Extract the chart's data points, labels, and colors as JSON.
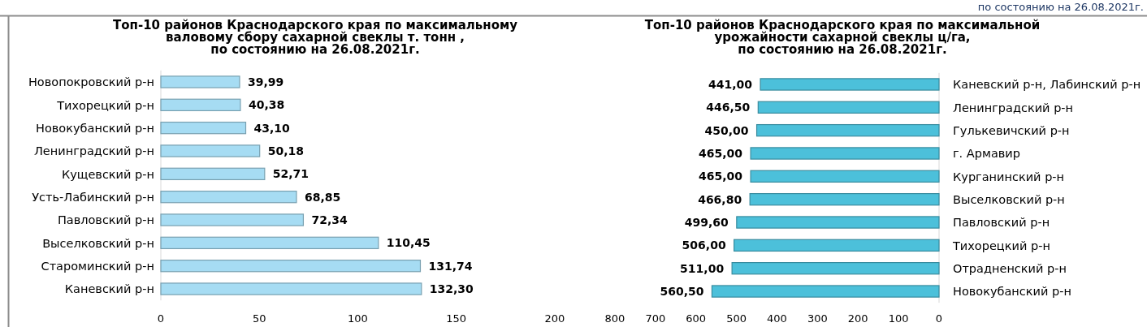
{
  "chart_data": [
    {
      "type": "bar",
      "orientation": "horizontal",
      "title": "Топ-10 районов Краснодарского края по максимальному\nваловому сбору сахарной свеклы т. тонн ,\nпо состоянию на 26.08.2021г.",
      "categories": [
        "Новопокровский р-н",
        "Тихорецкий р-н",
        "Новокубанский р-н",
        "Ленинградский р-н",
        "Кущевский р-н",
        "Усть-Лабинский р-н",
        "Павловский р-н",
        "Выселковский р-н",
        "Староминский р-н",
        "Каневский р-н"
      ],
      "values": [
        39.99,
        40.38,
        43.1,
        50.18,
        52.71,
        68.85,
        72.34,
        110.45,
        131.74,
        132.3
      ],
      "value_labels": [
        "39,99",
        "40,38",
        "43,10",
        "50,18",
        "52,71",
        "68,85",
        "72,34",
        "110,45",
        "131,74",
        "132,30"
      ],
      "color": "#a6dcf3",
      "xlim": [
        0,
        200
      ],
      "xticks": [
        0,
        50,
        100,
        150,
        200
      ]
    },
    {
      "type": "bar",
      "orientation": "horizontal",
      "title": "Топ-10 районов Краснодарского края по максимальной\nурожайности сахарной свеклы ц/га,\nпо состоянию на 26.08.2021г.",
      "categories": [
        "Каневский р-н, Лабинский р-н",
        "Ленинградский р-н",
        "Гулькевичский р-н",
        "г. Армавир",
        "Курганинский р-н",
        "Выселковский р-н",
        "Павловский р-н",
        "Тихорецкий р-н",
        "Отрадненский р-н",
        "Новокубанский р-н"
      ],
      "values": [
        441.0,
        446.5,
        450.0,
        465.0,
        465.0,
        466.8,
        499.6,
        506.0,
        511.0,
        560.5
      ],
      "value_labels": [
        "441,00",
        "446,50",
        "450,00",
        "465,00",
        "465,00",
        "466,80",
        "499,60",
        "506,00",
        "511,00",
        "560,50"
      ],
      "color": "#4cc0da",
      "xlim": [
        800,
        0
      ],
      "xticks": [
        800,
        700,
        600,
        500,
        400,
        300,
        200,
        100,
        0
      ],
      "annotations": [
        "по состоянию на 26.08.2021г."
      ]
    }
  ]
}
